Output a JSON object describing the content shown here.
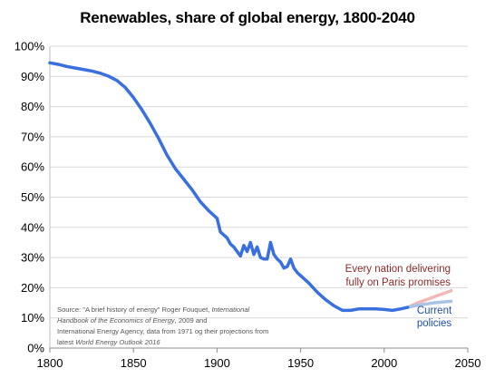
{
  "chart_data": {
    "type": "line",
    "title": "Renewables, share of global energy, 1800-2040",
    "xlabel": "",
    "ylabel": "",
    "xlim": [
      1800,
      2050
    ],
    "ylim": [
      0,
      100
    ],
    "x_ticks": [
      1800,
      1850,
      1900,
      1950,
      2000,
      2050
    ],
    "y_ticks": [
      0,
      10,
      20,
      30,
      40,
      50,
      60,
      70,
      80,
      90,
      100
    ],
    "x_tick_labels": [
      "1800",
      "1850",
      "1900",
      "1950",
      "2000",
      "2050"
    ],
    "y_tick_labels": [
      "0%",
      "10%",
      "20%",
      "30%",
      "40%",
      "50%",
      "60%",
      "70%",
      "80%",
      "90%",
      "100%"
    ],
    "grid": true,
    "legend": "none",
    "series": [
      {
        "color": "#3a6fe0",
        "points": [
          [
            1800,
            94.5
          ],
          [
            1805,
            94
          ],
          [
            1810,
            93.3
          ],
          [
            1815,
            92.8
          ],
          [
            1820,
            92.3
          ],
          [
            1825,
            91.8
          ],
          [
            1830,
            91.1
          ],
          [
            1835,
            90.1
          ],
          [
            1840,
            88.7
          ],
          [
            1845,
            86.4
          ],
          [
            1850,
            83.0
          ],
          [
            1855,
            79.0
          ],
          [
            1860,
            74.5
          ],
          [
            1865,
            69.5
          ],
          [
            1870,
            64.0
          ],
          [
            1875,
            59.5
          ],
          [
            1880,
            56.0
          ],
          [
            1885,
            52.5
          ],
          [
            1890,
            48.5
          ],
          [
            1895,
            45.5
          ],
          [
            1900,
            43.0
          ],
          [
            1902,
            38.5
          ],
          [
            1904,
            37.5
          ],
          [
            1906,
            36.5
          ],
          [
            1908,
            34.5
          ],
          [
            1910,
            33.5
          ],
          [
            1912,
            32.0
          ],
          [
            1914,
            30.5
          ],
          [
            1916,
            34.0
          ],
          [
            1918,
            32.0
          ],
          [
            1920,
            35.0
          ],
          [
            1922,
            31.0
          ],
          [
            1924,
            33.5
          ],
          [
            1926,
            30.0
          ],
          [
            1928,
            29.5
          ],
          [
            1930,
            29.5
          ],
          [
            1932,
            35.0
          ],
          [
            1934,
            31.0
          ],
          [
            1936,
            29.5
          ],
          [
            1938,
            28.5
          ],
          [
            1940,
            26.5
          ],
          [
            1942,
            27.0
          ],
          [
            1944,
            29.5
          ],
          [
            1946,
            26.5
          ],
          [
            1948,
            25.0
          ],
          [
            1950,
            24.0
          ],
          [
            1955,
            21.5
          ],
          [
            1960,
            18.5
          ],
          [
            1965,
            16.0
          ],
          [
            1970,
            14.0
          ],
          [
            1975,
            12.5
          ],
          [
            1980,
            12.5
          ],
          [
            1985,
            13.0
          ],
          [
            1990,
            13.0
          ],
          [
            1995,
            13.0
          ],
          [
            2000,
            12.8
          ],
          [
            2005,
            12.5
          ],
          [
            2010,
            13.0
          ],
          [
            2014,
            13.5
          ]
        ]
      },
      {
        "name": "Every nation delivering fully on Paris promises",
        "color": "#f2b8b6",
        "points": [
          [
            2014,
            13.5
          ],
          [
            2020,
            15.0
          ],
          [
            2030,
            17.0
          ],
          [
            2040,
            19.0
          ]
        ]
      },
      {
        "name": "Current policies",
        "color": "#a9c2e6",
        "points": [
          [
            2014,
            13.5
          ],
          [
            2020,
            14.2
          ],
          [
            2030,
            15.0
          ],
          [
            2040,
            15.5
          ]
        ]
      }
    ],
    "annotations": {
      "paris_line1": "Every nation delivering",
      "paris_line2": "fully on Paris promises",
      "current_line1": "Current",
      "current_line2": "policies",
      "source_l1_a": "Source: \"A brief history of energy\" Roger Fouquet, ",
      "source_l1_b": "International",
      "source_l2_a": "Handbook of the Economics of Energy",
      "source_l2_b": ", 2009 and",
      "source_l3": "International Energy Agency, data from 1971 og their projections from",
      "source_l4_a": "latest ",
      "source_l4_b": "World Energy Outlook 2016"
    },
    "annotation_colors": {
      "paris": "#8b2b2b",
      "current": "#1f4fa8",
      "source": "#555555"
    },
    "gridline_color": "#d9d9d9"
  }
}
